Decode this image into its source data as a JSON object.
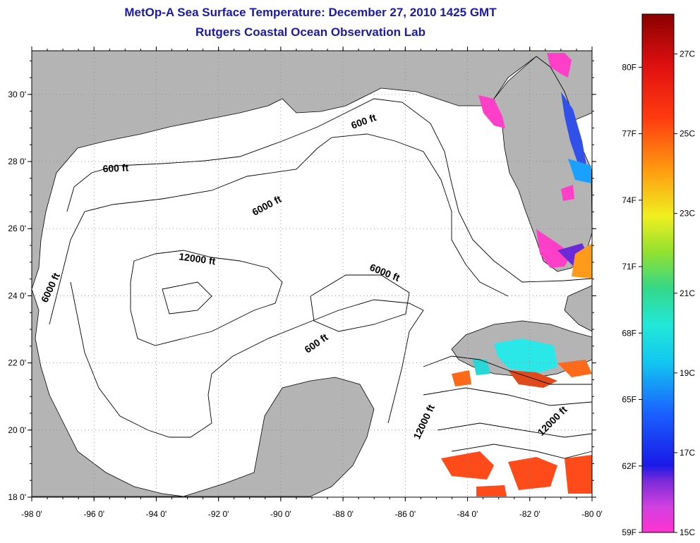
{
  "title_line1": "MetOp-A Sea Surface Temperature:  December 27, 2010 1425 GMT",
  "title_line2": "Rutgers Coastal Ocean Observation Lab",
  "colors": {
    "land": "#b4b4b4",
    "ocean": "#ffffff",
    "title": "#1a1aa6",
    "grid": "#888888"
  },
  "map": {
    "lon_ticks": [
      "-98 0'",
      "-96 0'",
      "-94 0'",
      "-92 0'",
      "-90 0'",
      "-88 0'",
      "-86 0'",
      "-84 0'",
      "-82 0'",
      "-80 0'"
    ],
    "lat_ticks": [
      "30 0'",
      "28 0'",
      "26 0'",
      "24 0'",
      "22 0'",
      "20 0'",
      "18 0'"
    ],
    "lon_range": [
      -98,
      -80
    ],
    "lat_range": [
      18,
      31.3
    ],
    "contour_labels": [
      {
        "text": "600 ft",
        "lon": -87.3,
        "lat": 29.1,
        "rotate": -20
      },
      {
        "text": "600 ft",
        "lon": -95.3,
        "lat": 27.7,
        "rotate": -3
      },
      {
        "text": "6000 ft",
        "lon": -90.4,
        "lat": 26.6,
        "rotate": -28
      },
      {
        "text": "12000 ft",
        "lon": -92.7,
        "lat": 25.0,
        "rotate": 8
      },
      {
        "text": "6000 ft",
        "lon": -86.7,
        "lat": 24.6,
        "rotate": 22
      },
      {
        "text": "6000 ft",
        "lon": -97.3,
        "lat": 24.2,
        "rotate": -65
      },
      {
        "text": "600 ft",
        "lon": -88.8,
        "lat": 22.5,
        "rotate": -35
      },
      {
        "text": "12000 ft",
        "lon": -85.3,
        "lat": 20.2,
        "rotate": -65
      },
      {
        "text": "12000 ft",
        "lon": -81.2,
        "lat": 20.2,
        "rotate": -45
      }
    ]
  },
  "colorbar": {
    "left_labels": [
      "80F",
      "77F",
      "74F",
      "71F",
      "68F",
      "65F",
      "62F",
      "59F"
    ],
    "right_labels": [
      "27C",
      "25C",
      "23C",
      "21C",
      "19C",
      "17C",
      "15C"
    ],
    "left_values_f": [
      80,
      77,
      74,
      71,
      68,
      65,
      62,
      59
    ],
    "right_values_c": [
      27,
      25,
      23,
      21,
      19,
      17,
      15
    ]
  }
}
